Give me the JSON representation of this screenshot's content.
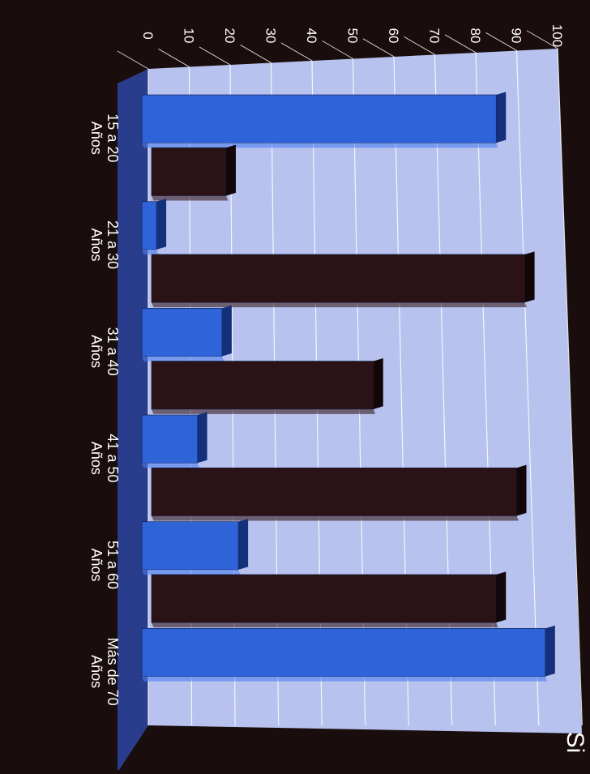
{
  "chart_data": {
    "type": "bar",
    "orientation": "rotated-90-clockwise",
    "categories": [
      [
        "15 a 20",
        "Años"
      ],
      [
        "21 a 30",
        "Años"
      ],
      [
        "31 a 40",
        "Años"
      ],
      [
        "41 a 50",
        "Años"
      ],
      [
        "51 a 60",
        "Años"
      ],
      [
        "Más de 70",
        "Años"
      ]
    ],
    "series": [
      {
        "values": [
          85,
          2,
          18,
          12,
          22,
          97
        ],
        "color": "#2f63d8"
      },
      {
        "values": [
          19,
          92,
          55,
          90,
          85,
          0
        ],
        "color": "#2a1216"
      }
    ],
    "ylim": [
      0,
      100
    ],
    "yticks": [
      0,
      10,
      20,
      30,
      40,
      50,
      60,
      70,
      80,
      90,
      100
    ],
    "grid": true,
    "partial_title": "Si",
    "colors": {
      "background": "#1a0d0d",
      "plot_wall": "#b7c2ee",
      "plot_floor": "#2a3d8c",
      "grid": "#ffffff",
      "text": "#ffffff"
    }
  }
}
